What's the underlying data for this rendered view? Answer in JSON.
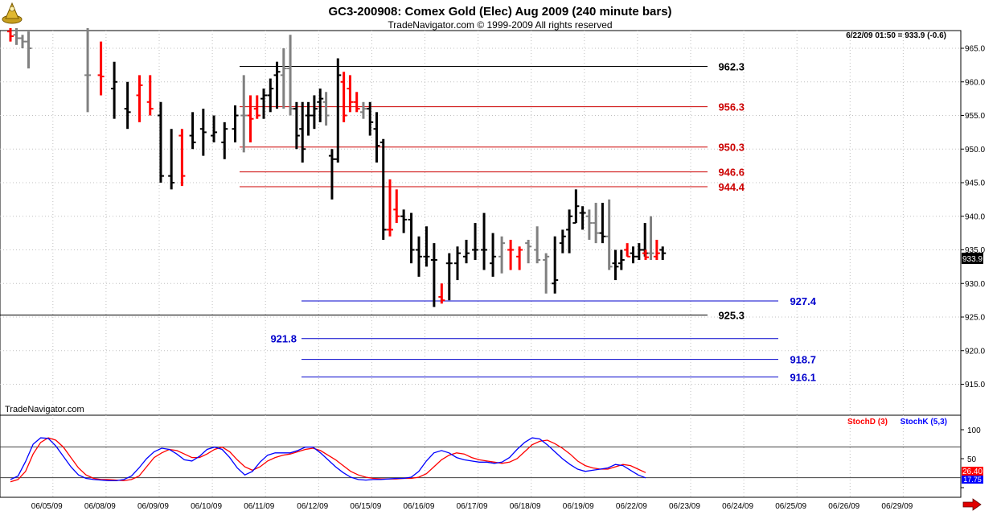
{
  "header": {
    "title": "GC3-200908:  Comex Gold (Elec) Aug 2009  (240 minute bars)",
    "copyright": "TradeNavigator.com © 1999-2009 All rights reserved",
    "status": "6/22/09 01:50 = 933.9 (-0.6)"
  },
  "watermark": "TradeNavigator.com",
  "price_tag": "933.9",
  "colors": {
    "up_bar": "#000000",
    "down_bar": "#ff0000",
    "neutral_bar": "#808080",
    "support_line": "#0000cc",
    "resistance_line": "#cc0000",
    "stoch_d": "#ff0000",
    "stoch_k": "#0000ff",
    "grid": "#c0c0c0"
  },
  "chart_data": [
    {
      "type": "ohlc",
      "title": "GC3-200908:  Comex Gold (Elec) Aug 2009  (240 minute bars)",
      "ylim": [
        910,
        968
      ],
      "y_ticks": [
        "965.0",
        "960.0",
        "955.0",
        "950.0",
        "945.0",
        "940.0",
        "935.0",
        "930.0",
        "925.0",
        "920.0",
        "915.0"
      ],
      "x_ticks": [
        "06/05/09",
        "06/08/09",
        "06/09/09",
        "06/10/09",
        "06/11/09",
        "06/12/09",
        "06/15/09",
        "06/16/09",
        "06/17/09",
        "06/18/09",
        "06/19/09",
        "06/22/09",
        "06/23/09",
        "06/24/09",
        "06/25/09",
        "06/26/09",
        "06/29/09"
      ],
      "grid": true,
      "bars": [
        {
          "d": "06/04",
          "o": 967.5,
          "h": 968,
          "l": 966,
          "c": 966.8,
          "k": "down"
        },
        {
          "d": "06/04",
          "o": 967,
          "h": 968,
          "l": 965.5,
          "c": 966.5,
          "k": "neutral"
        },
        {
          "d": "06/04",
          "o": 966.5,
          "h": 967,
          "l": 965,
          "c": 966,
          "k": "neutral"
        },
        {
          "d": "06/04",
          "o": 966,
          "h": 967.5,
          "l": 962,
          "c": 965,
          "k": "neutral"
        },
        {
          "d": "06/05",
          "o": 961,
          "h": 968,
          "l": 955.5,
          "c": 961,
          "k": "neutral"
        },
        {
          "d": "06/05",
          "o": 961,
          "h": 966,
          "l": 958,
          "c": 960.8,
          "k": "down"
        },
        {
          "d": "06/05",
          "o": 959,
          "h": 963,
          "l": 954.5,
          "c": 960,
          "k": "up"
        },
        {
          "d": "06/05",
          "o": 956,
          "h": 960,
          "l": 953,
          "c": 955.5,
          "k": "up"
        },
        {
          "d": "06/08",
          "o": 958,
          "h": 961,
          "l": 954,
          "c": 959.5,
          "k": "down"
        },
        {
          "d": "06/08",
          "o": 957,
          "h": 961,
          "l": 955,
          "c": 956,
          "k": "down"
        },
        {
          "d": "06/08",
          "o": 955,
          "h": 957,
          "l": 945,
          "c": 946,
          "k": "up"
        },
        {
          "d": "06/08",
          "o": 946,
          "h": 953,
          "l": 944,
          "c": 945,
          "k": "up"
        },
        {
          "d": "06/08",
          "o": 952,
          "h": 953,
          "l": 944.5,
          "c": 946,
          "k": "down"
        },
        {
          "d": "06/09",
          "o": 952,
          "h": 955.5,
          "l": 950,
          "c": 951,
          "k": "up"
        },
        {
          "d": "06/09",
          "o": 953,
          "h": 956,
          "l": 949,
          "c": 952.5,
          "k": "up"
        },
        {
          "d": "06/09",
          "o": 952,
          "h": 955,
          "l": 951,
          "c": 952.5,
          "k": "up"
        },
        {
          "d": "06/09",
          "o": 951,
          "h": 954,
          "l": 948.5,
          "c": 953,
          "k": "up"
        },
        {
          "d": "06/09",
          "o": 953,
          "h": 956.5,
          "l": 951,
          "c": 955,
          "k": "up"
        },
        {
          "d": "06/10",
          "o": 955,
          "h": 961,
          "l": 949.5,
          "c": 955,
          "k": "neutral"
        },
        {
          "d": "06/10",
          "o": 955,
          "h": 958,
          "l": 951,
          "c": 954.5,
          "k": "down"
        },
        {
          "d": "06/10",
          "o": 956,
          "h": 958,
          "l": 954.5,
          "c": 955,
          "k": "down"
        },
        {
          "d": "06/10",
          "o": 957.5,
          "h": 959,
          "l": 954.5,
          "c": 958,
          "k": "up"
        },
        {
          "d": "06/10",
          "o": 958,
          "h": 960.5,
          "l": 955.5,
          "c": 959,
          "k": "up"
        },
        {
          "d": "06/10",
          "o": 961,
          "h": 963,
          "l": 956,
          "c": 961.5,
          "k": "up"
        },
        {
          "d": "06/10",
          "o": 961,
          "h": 965,
          "l": 956,
          "c": 962,
          "k": "neutral"
        },
        {
          "d": "06/10",
          "o": 962,
          "h": 967,
          "l": 955,
          "c": 956,
          "k": "neutral"
        },
        {
          "d": "06/11",
          "o": 956,
          "h": 957,
          "l": 950,
          "c": 952,
          "k": "up"
        },
        {
          "d": "06/11",
          "o": 953,
          "h": 957,
          "l": 948,
          "c": 950,
          "k": "up"
        },
        {
          "d": "06/11",
          "o": 955,
          "h": 957,
          "l": 952,
          "c": 955,
          "k": "up"
        },
        {
          "d": "06/11",
          "o": 955,
          "h": 958,
          "l": 953,
          "c": 956,
          "k": "up"
        },
        {
          "d": "06/11",
          "o": 957,
          "h": 959,
          "l": 954,
          "c": 957.5,
          "k": "up"
        },
        {
          "d": "06/11",
          "o": 957,
          "h": 958.5,
          "l": 953.5,
          "c": 955,
          "k": "neutral"
        },
        {
          "d": "06/11",
          "o": 949,
          "h": 950,
          "l": 942.5,
          "c": 948.5,
          "k": "up"
        },
        {
          "d": "06/11",
          "o": 948.5,
          "h": 963.5,
          "l": 948,
          "c": 961,
          "k": "up"
        },
        {
          "d": "06/11",
          "o": 960,
          "h": 961.5,
          "l": 954,
          "c": 955,
          "k": "down"
        },
        {
          "d": "06/12",
          "o": 959,
          "h": 961,
          "l": 955.5,
          "c": 957,
          "k": "down"
        },
        {
          "d": "06/12",
          "o": 957,
          "h": 958.5,
          "l": 955.5,
          "c": 956,
          "k": "down"
        },
        {
          "d": "06/12",
          "o": 955.5,
          "h": 957,
          "l": 954.5,
          "c": 956,
          "k": "neutral"
        },
        {
          "d": "06/12",
          "o": 956,
          "h": 957,
          "l": 952,
          "c": 954,
          "k": "up"
        },
        {
          "d": "06/12",
          "o": 953,
          "h": 955.5,
          "l": 948,
          "c": 950.5,
          "k": "up"
        },
        {
          "d": "06/12",
          "o": 951,
          "h": 951.5,
          "l": 936.5,
          "c": 938,
          "k": "up"
        },
        {
          "d": "06/12",
          "o": 938,
          "h": 945.5,
          "l": 937,
          "c": 938,
          "k": "down"
        },
        {
          "d": "06/12",
          "o": 941,
          "h": 944,
          "l": 939,
          "c": 940,
          "k": "down"
        },
        {
          "d": "06/15",
          "o": 940,
          "h": 941,
          "l": 937.5,
          "c": 939.5,
          "k": "up"
        },
        {
          "d": "06/15",
          "o": 939.5,
          "h": 940.5,
          "l": 933,
          "c": 935,
          "k": "up"
        },
        {
          "d": "06/15",
          "o": 935,
          "h": 937,
          "l": 931,
          "c": 934,
          "k": "up"
        },
        {
          "d": "06/15",
          "o": 934,
          "h": 938.5,
          "l": 932.5,
          "c": 934,
          "k": "up"
        },
        {
          "d": "06/15",
          "o": 933.5,
          "h": 936,
          "l": 926.5,
          "c": 933.5,
          "k": "up"
        },
        {
          "d": "06/15",
          "o": 928,
          "h": 930,
          "l": 927,
          "c": 927.5,
          "k": "down"
        },
        {
          "d": "06/15",
          "o": 933,
          "h": 934.5,
          "l": 927.5,
          "c": 933,
          "k": "up"
        },
        {
          "d": "06/16",
          "o": 933,
          "h": 935.5,
          "l": 930.5,
          "c": 934.5,
          "k": "up"
        },
        {
          "d": "06/16",
          "o": 934,
          "h": 936.5,
          "l": 933,
          "c": 934.5,
          "k": "up"
        },
        {
          "d": "06/16",
          "o": 935,
          "h": 939,
          "l": 933.5,
          "c": 935,
          "k": "up"
        },
        {
          "d": "06/16",
          "o": 935,
          "h": 940.5,
          "l": 932,
          "c": 935,
          "k": "up"
        },
        {
          "d": "06/16",
          "o": 933,
          "h": 937.5,
          "l": 931,
          "c": 934,
          "k": "up"
        },
        {
          "d": "06/16",
          "o": 934,
          "h": 937,
          "l": 931.5,
          "c": 936,
          "k": "neutral"
        },
        {
          "d": "06/17",
          "o": 935,
          "h": 936.5,
          "l": 932,
          "c": 935,
          "k": "down"
        },
        {
          "d": "06/17",
          "o": 934,
          "h": 935.5,
          "l": 932,
          "c": 935,
          "k": "down"
        },
        {
          "d": "06/17",
          "o": 936,
          "h": 936.5,
          "l": 933,
          "c": 935.5,
          "k": "neutral"
        },
        {
          "d": "06/17",
          "o": 935,
          "h": 938.5,
          "l": 933,
          "c": 933.5,
          "k": "neutral"
        },
        {
          "d": "06/17",
          "o": 933.5,
          "h": 934.5,
          "l": 928.5,
          "c": 934,
          "k": "neutral"
        },
        {
          "d": "06/17",
          "o": 930,
          "h": 937,
          "l": 928.5,
          "c": 930.5,
          "k": "up"
        },
        {
          "d": "06/18",
          "o": 936,
          "h": 938,
          "l": 934.5,
          "c": 937,
          "k": "up"
        },
        {
          "d": "06/18",
          "o": 938,
          "h": 941,
          "l": 934.5,
          "c": 940,
          "k": "up"
        },
        {
          "d": "06/18",
          "o": 939,
          "h": 944,
          "l": 939,
          "c": 941.5,
          "k": "up"
        },
        {
          "d": "06/18",
          "o": 940.5,
          "h": 941.5,
          "l": 938,
          "c": 940.5,
          "k": "up"
        },
        {
          "d": "06/18",
          "o": 940,
          "h": 941,
          "l": 936.5,
          "c": 939,
          "k": "neutral"
        },
        {
          "d": "06/18",
          "o": 939,
          "h": 942,
          "l": 936,
          "c": 937.5,
          "k": "neutral"
        },
        {
          "d": "06/18",
          "o": 937.5,
          "h": 942,
          "l": 936,
          "c": 937,
          "k": "up"
        },
        {
          "d": "06/18",
          "o": 937,
          "h": 942.5,
          "l": 932,
          "c": 932.5,
          "k": "neutral"
        },
        {
          "d": "06/19",
          "o": 933,
          "h": 935,
          "l": 930.5,
          "c": 932.5,
          "k": "up"
        },
        {
          "d": "06/19",
          "o": 933,
          "h": 935,
          "l": 932,
          "c": 933.5,
          "k": "up"
        },
        {
          "d": "06/19",
          "o": 935,
          "h": 936,
          "l": 934,
          "c": 934,
          "k": "down"
        },
        {
          "d": "06/19",
          "o": 934.5,
          "h": 935.5,
          "l": 933,
          "c": 934,
          "k": "up"
        },
        {
          "d": "06/19",
          "o": 934,
          "h": 936,
          "l": 933.5,
          "c": 935,
          "k": "up"
        },
        {
          "d": "06/19",
          "o": 935,
          "h": 939,
          "l": 934,
          "c": 934.5,
          "k": "up"
        },
        {
          "d": "06/19",
          "o": 934.5,
          "h": 940,
          "l": 933.5,
          "c": 934.5,
          "k": "neutral"
        },
        {
          "d": "06/19",
          "o": 934,
          "h": 936.5,
          "l": 933.5,
          "c": 934.5,
          "k": "down"
        },
        {
          "d": "06/19",
          "o": 935,
          "h": 935.5,
          "l": 933.5,
          "c": 934.5,
          "k": "up"
        },
        {
          "d": "06/22",
          "o": 934.5,
          "h": 935,
          "l": 933.5,
          "c": 933.9,
          "k": "down"
        }
      ],
      "levels": [
        {
          "value": 962.3,
          "label": "962.3",
          "kind": "black"
        },
        {
          "value": 956.3,
          "label": "956.3",
          "kind": "red"
        },
        {
          "value": 950.3,
          "label": "950.3",
          "kind": "red"
        },
        {
          "value": 946.6,
          "label": "946.6",
          "kind": "red"
        },
        {
          "value": 944.4,
          "label": "944.4",
          "kind": "red"
        },
        {
          "value": 927.4,
          "label": "927.4",
          "kind": "blue"
        },
        {
          "value": 925.3,
          "label": "925.3",
          "kind": "black"
        },
        {
          "value": 921.8,
          "label": "921.8",
          "kind": "blue"
        },
        {
          "value": 918.7,
          "label": "918.7",
          "kind": "blue"
        },
        {
          "value": 916.1,
          "label": "916.1",
          "kind": "blue"
        }
      ]
    },
    {
      "type": "line",
      "ylim": [
        0,
        100
      ],
      "y_ticks": [
        "100",
        "50"
      ],
      "reference_lines": [
        80,
        20
      ],
      "legend": [
        "StochD (3)",
        "StochK (5,3)"
      ],
      "last_values": [
        "26.40",
        "17.75"
      ],
      "series": [
        {
          "name": "StochD (3)",
          "values": [
            10,
            14,
            28,
            58,
            78,
            86,
            82,
            70,
            52,
            34,
            22,
            16,
            14,
            14,
            13,
            12,
            14,
            20,
            36,
            52,
            60,
            66,
            64,
            58,
            52,
            52,
            58,
            66,
            70,
            62,
            48,
            36,
            30,
            36,
            46,
            52,
            56,
            58,
            62,
            66,
            68,
            64,
            56,
            48,
            38,
            28,
            22,
            18,
            16,
            15,
            15,
            15,
            16,
            16,
            18,
            24,
            36,
            48,
            56,
            60,
            58,
            52,
            48,
            46,
            44,
            42,
            44,
            50,
            62,
            74,
            80,
            82,
            76,
            68,
            58,
            46,
            38,
            34,
            32,
            32,
            36,
            40,
            38,
            32,
            26
          ]
        },
        {
          "name": "StochK (5,3)",
          "values": [
            14,
            20,
            45,
            75,
            86,
            85,
            72,
            54,
            36,
            22,
            16,
            14,
            13,
            12,
            12,
            14,
            20,
            34,
            50,
            62,
            68,
            66,
            58,
            48,
            46,
            54,
            66,
            70,
            66,
            52,
            34,
            22,
            28,
            44,
            56,
            60,
            60,
            60,
            64,
            70,
            70,
            60,
            48,
            36,
            26,
            18,
            14,
            13,
            14,
            14,
            15,
            16,
            16,
            18,
            28,
            46,
            60,
            64,
            60,
            52,
            48,
            46,
            44,
            44,
            42,
            44,
            52,
            66,
            78,
            86,
            84,
            74,
            62,
            50,
            40,
            32,
            28,
            30,
            32,
            34,
            40,
            38,
            30,
            22,
            17
          ]
        }
      ]
    }
  ]
}
